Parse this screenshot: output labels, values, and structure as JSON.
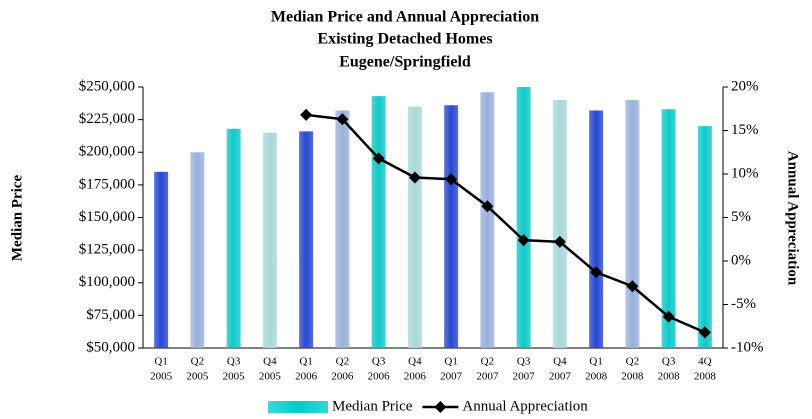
{
  "chart_data": {
    "type": "bar-line",
    "title": [
      "Median Price and Annual Appreciation",
      "Existing Detached Homes",
      "Eugene/Springfield"
    ],
    "y_label": "Median Price",
    "y2_label": "Annual Appreciation",
    "categories": [
      [
        "Q1",
        "2005"
      ],
      [
        "Q2",
        "2005"
      ],
      [
        "Q3",
        "2005"
      ],
      [
        "Q4",
        "2005"
      ],
      [
        "Q1",
        "2006"
      ],
      [
        "Q2",
        "2006"
      ],
      [
        "Q3",
        "2006"
      ],
      [
        "Q4",
        "2006"
      ],
      [
        "Q1",
        "2007"
      ],
      [
        "Q2",
        "2007"
      ],
      [
        "Q3",
        "2007"
      ],
      [
        "Q4",
        "2007"
      ],
      [
        "Q1",
        "2008"
      ],
      [
        "Q2",
        "2008"
      ],
      [
        "Q3",
        "2008"
      ],
      [
        "4Q",
        "2008"
      ]
    ],
    "series": [
      {
        "name": "Median Price",
        "type": "bar",
        "color": "#00cccc",
        "colors": [
          "#2848d0",
          "#9ab0dc",
          "#10c8c8",
          "#a8d8d8",
          "#2848d0",
          "#9ab0dc",
          "#10c8c8",
          "#a8d8d8",
          "#2848d0",
          "#9ab0dc",
          "#10c8c8",
          "#a8d8d8",
          "#2848d0",
          "#9ab0dc",
          "#10c8c8",
          "#10c8c8"
        ],
        "values": [
          185000,
          200000,
          218000,
          215000,
          216000,
          232000,
          243000,
          235000,
          236000,
          246000,
          250000,
          240000,
          232000,
          240000,
          233000,
          220000
        ]
      },
      {
        "name": "Annual Appreciation",
        "type": "line",
        "axis": "y2",
        "color": "#000000",
        "values": [
          null,
          null,
          null,
          null,
          16.8,
          16.3,
          11.8,
          9.6,
          9.4,
          6.3,
          2.4,
          2.2,
          -1.3,
          -2.9,
          -6.4,
          -8.2
        ]
      }
    ],
    "ylim": [
      50000,
      250000
    ],
    "yticks": [
      {
        "value": 50000,
        "label": "$50,000"
      },
      {
        "value": 75000,
        "label": "$75,000"
      },
      {
        "value": 100000,
        "label": "$100,000"
      },
      {
        "value": 125000,
        "label": "$125,000"
      },
      {
        "value": 150000,
        "label": "$150,000"
      },
      {
        "value": 175000,
        "label": "$175,000"
      },
      {
        "value": 200000,
        "label": "$200,000"
      },
      {
        "value": 225000,
        "label": "$225,000"
      },
      {
        "value": 250000,
        "label": "$250,000"
      }
    ],
    "y2lim": [
      -10,
      20
    ],
    "y2ticks": [
      {
        "value": -10,
        "label": "-10%"
      },
      {
        "value": -5,
        "label": "-5%"
      },
      {
        "value": 0,
        "label": "0%"
      },
      {
        "value": 5,
        "label": "5%"
      },
      {
        "value": 10,
        "label": "10%"
      },
      {
        "value": 15,
        "label": "15%"
      },
      {
        "value": 20,
        "label": "20%"
      }
    ],
    "legend": "bottom"
  }
}
